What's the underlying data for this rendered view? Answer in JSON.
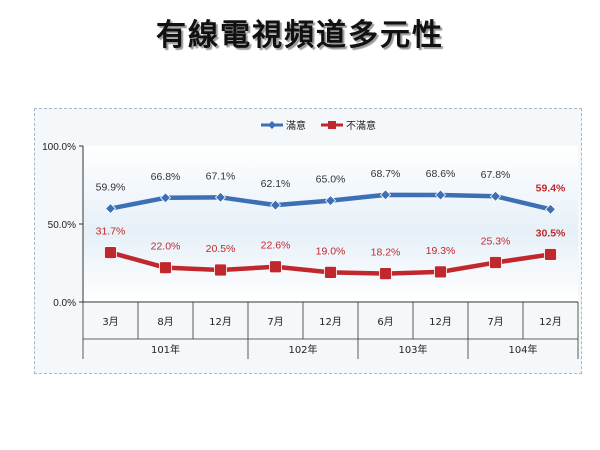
{
  "title": "有線電視頻道多元性",
  "chart_data": {
    "type": "line",
    "categories": [
      "3月",
      "8月",
      "12月",
      "7月",
      "12月",
      "6月",
      "12月",
      "7月",
      "12月"
    ],
    "groups": [
      {
        "label": "101年",
        "span": 3
      },
      {
        "label": "102年",
        "span": 2
      },
      {
        "label": "103年",
        "span": 2
      },
      {
        "label": "104年",
        "span": 2
      }
    ],
    "series": [
      {
        "name": "滿意",
        "values": [
          59.9,
          66.8,
          67.1,
          62.1,
          65.0,
          68.7,
          68.6,
          67.8,
          59.4
        ],
        "labels": [
          "59.9%",
          "66.8%",
          "67.1%",
          "62.1%",
          "65.0%",
          "68.7%",
          "68.6%",
          "67.8%",
          "59.4%"
        ],
        "color": "#3d6fb5"
      },
      {
        "name": "不滿意",
        "values": [
          31.7,
          22.0,
          20.5,
          22.6,
          19.0,
          18.2,
          19.3,
          25.3,
          30.5
        ],
        "labels": [
          "31.7%",
          "22.0%",
          "20.5%",
          "22.6%",
          "19.0%",
          "18.2%",
          "19.3%",
          "25.3%",
          "30.5%"
        ],
        "color": "#c0282d"
      }
    ],
    "yticks": [
      "100.0%",
      "50.0%",
      "0.0%"
    ],
    "ylim": [
      0,
      100
    ],
    "legend_position": "top",
    "grid": false
  }
}
